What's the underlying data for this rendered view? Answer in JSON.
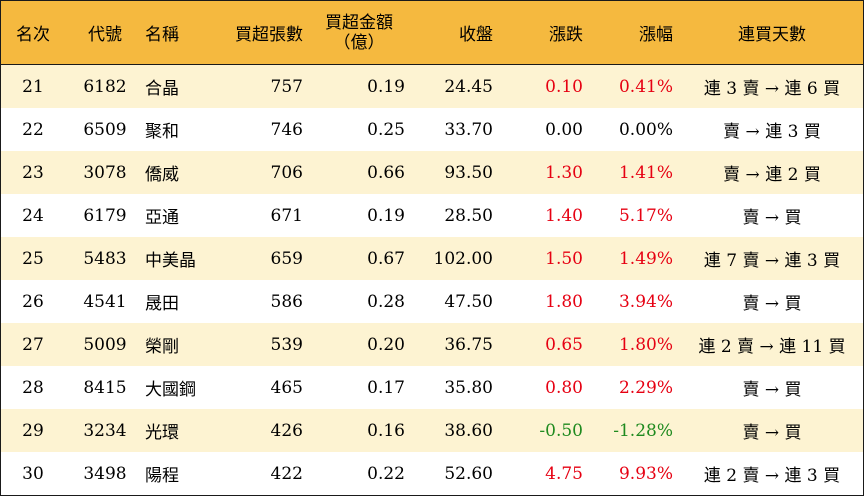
{
  "headers": {
    "rank": "名次",
    "code": "代號",
    "name": "名稱",
    "lots": "買超張數",
    "amount_line1": "買超金額",
    "amount_line2": "（億）",
    "close": "收盤",
    "change": "漲跌",
    "pct": "漲幅",
    "streak": "連買天數"
  },
  "colors": {
    "header_bg": "#f5b93f",
    "alt_row_bg": "#fdf3d2",
    "up": "#e60012",
    "down": "#1f8a1f"
  },
  "rows": [
    {
      "rank": "21",
      "code": "6182",
      "name": "合晶",
      "lots": "757",
      "amount": "0.19",
      "close": "24.45",
      "change": "0.10",
      "pct": "0.41%",
      "streak": "連 3 賣 → 連 6 買",
      "dir": "up"
    },
    {
      "rank": "22",
      "code": "6509",
      "name": "聚和",
      "lots": "746",
      "amount": "0.25",
      "close": "33.70",
      "change": "0.00",
      "pct": "0.00%",
      "streak": "賣 → 連 3 買",
      "dir": "flat"
    },
    {
      "rank": "23",
      "code": "3078",
      "name": "僑威",
      "lots": "706",
      "amount": "0.66",
      "close": "93.50",
      "change": "1.30",
      "pct": "1.41%",
      "streak": "賣 → 連 2 買",
      "dir": "up"
    },
    {
      "rank": "24",
      "code": "6179",
      "name": "亞通",
      "lots": "671",
      "amount": "0.19",
      "close": "28.50",
      "change": "1.40",
      "pct": "5.17%",
      "streak": "賣 → 買",
      "dir": "up"
    },
    {
      "rank": "25",
      "code": "5483",
      "name": "中美晶",
      "lots": "659",
      "amount": "0.67",
      "close": "102.00",
      "change": "1.50",
      "pct": "1.49%",
      "streak": "連 7 賣 → 連 3 買",
      "dir": "up"
    },
    {
      "rank": "26",
      "code": "4541",
      "name": "晟田",
      "lots": "586",
      "amount": "0.28",
      "close": "47.50",
      "change": "1.80",
      "pct": "3.94%",
      "streak": "賣 → 買",
      "dir": "up"
    },
    {
      "rank": "27",
      "code": "5009",
      "name": "榮剛",
      "lots": "539",
      "amount": "0.20",
      "close": "36.75",
      "change": "0.65",
      "pct": "1.80%",
      "streak": "連 2 賣 → 連 11 買",
      "dir": "up"
    },
    {
      "rank": "28",
      "code": "8415",
      "name": "大國鋼",
      "lots": "465",
      "amount": "0.17",
      "close": "35.80",
      "change": "0.80",
      "pct": "2.29%",
      "streak": "賣 → 買",
      "dir": "up"
    },
    {
      "rank": "29",
      "code": "3234",
      "name": "光環",
      "lots": "426",
      "amount": "0.16",
      "close": "38.60",
      "change": "-0.50",
      "pct": "-1.28%",
      "streak": "賣 → 買",
      "dir": "down"
    },
    {
      "rank": "30",
      "code": "3498",
      "name": "陽程",
      "lots": "422",
      "amount": "0.22",
      "close": "52.60",
      "change": "4.75",
      "pct": "9.93%",
      "streak": "連 2 賣 → 連 3 買",
      "dir": "up"
    }
  ]
}
